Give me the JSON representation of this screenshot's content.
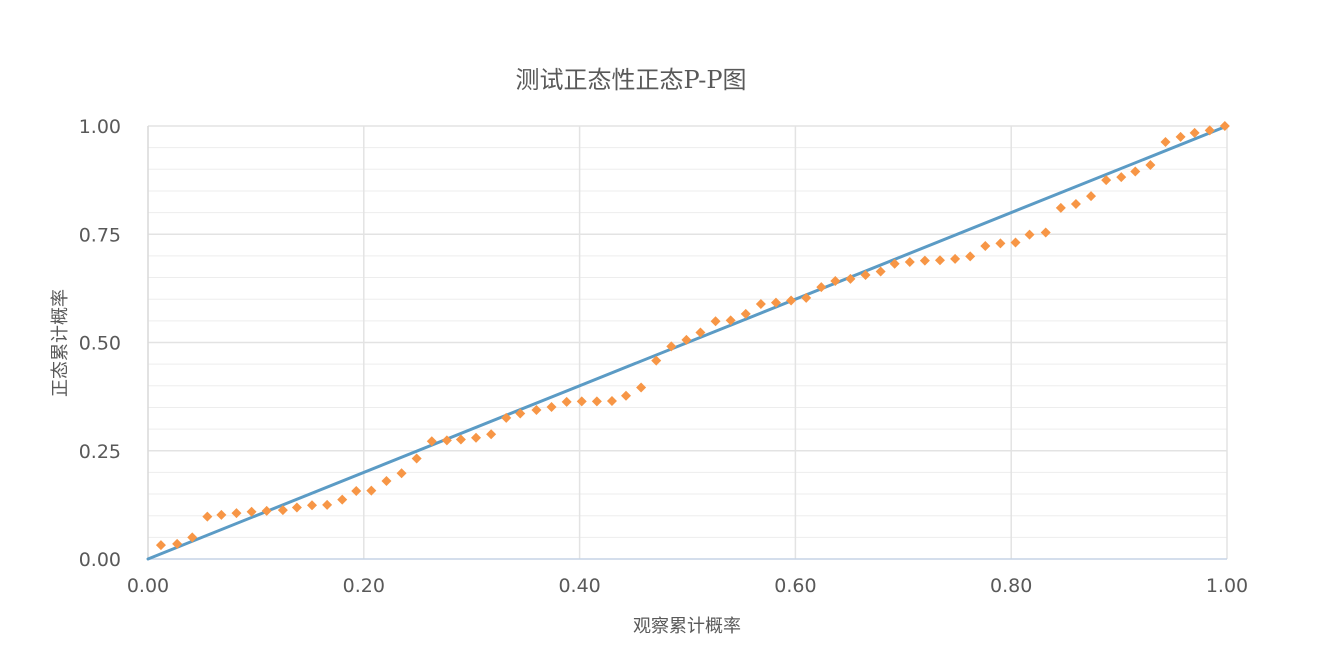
{
  "chart_data": {
    "type": "scatter",
    "title": "测试正态性正态P-P图",
    "xlabel": "观察累计概率",
    "ylabel": "正态累计概率",
    "xlim": [
      0,
      1
    ],
    "ylim": [
      0,
      1
    ],
    "x_ticks": [
      "0.00",
      "0.20",
      "0.40",
      "0.60",
      "0.80",
      "1.00"
    ],
    "y_ticks": [
      "0.00",
      "0.25",
      "0.50",
      "0.75",
      "1.00"
    ],
    "grid": true,
    "colors": {
      "points": "#F79646",
      "reference_line": "#5B9BC5",
      "grid": "#E3E3E3"
    },
    "reference_line": {
      "x": [
        0,
        1
      ],
      "y": [
        0,
        1
      ]
    },
    "series": [
      {
        "x": [
          0.012,
          0.027,
          0.041,
          0.055,
          0.068,
          0.082,
          0.096,
          0.11,
          0.125,
          0.138,
          0.152,
          0.166,
          0.18,
          0.193,
          0.207,
          0.221,
          0.235,
          0.249,
          0.263,
          0.277,
          0.29,
          0.304,
          0.318,
          0.332,
          0.345,
          0.36,
          0.374,
          0.388,
          0.402,
          0.416,
          0.43,
          0.443,
          0.457,
          0.471,
          0.485,
          0.499,
          0.512,
          0.526,
          0.54,
          0.554,
          0.568,
          0.582,
          0.596,
          0.61,
          0.624,
          0.637,
          0.651,
          0.665,
          0.679,
          0.692,
          0.706,
          0.72,
          0.734,
          0.748,
          0.762,
          0.776,
          0.79,
          0.804,
          0.817,
          0.832,
          0.846,
          0.86,
          0.874,
          0.888,
          0.902,
          0.915,
          0.929,
          0.943,
          0.957,
          0.97,
          0.984,
          0.998
        ],
        "y": [
          0.032,
          0.035,
          0.05,
          0.098,
          0.102,
          0.106,
          0.109,
          0.111,
          0.113,
          0.119,
          0.124,
          0.125,
          0.137,
          0.157,
          0.158,
          0.18,
          0.198,
          0.232,
          0.272,
          0.274,
          0.276,
          0.28,
          0.288,
          0.326,
          0.336,
          0.344,
          0.351,
          0.363,
          0.364,
          0.364,
          0.365,
          0.377,
          0.396,
          0.458,
          0.491,
          0.506,
          0.523,
          0.549,
          0.551,
          0.566,
          0.589,
          0.592,
          0.597,
          0.603,
          0.628,
          0.642,
          0.647,
          0.656,
          0.664,
          0.682,
          0.686,
          0.689,
          0.69,
          0.693,
          0.699,
          0.723,
          0.729,
          0.731,
          0.749,
          0.754,
          0.811,
          0.82,
          0.838,
          0.875,
          0.882,
          0.895,
          0.91,
          0.963,
          0.975,
          0.984,
          0.99,
          1.0
        ]
      }
    ]
  }
}
